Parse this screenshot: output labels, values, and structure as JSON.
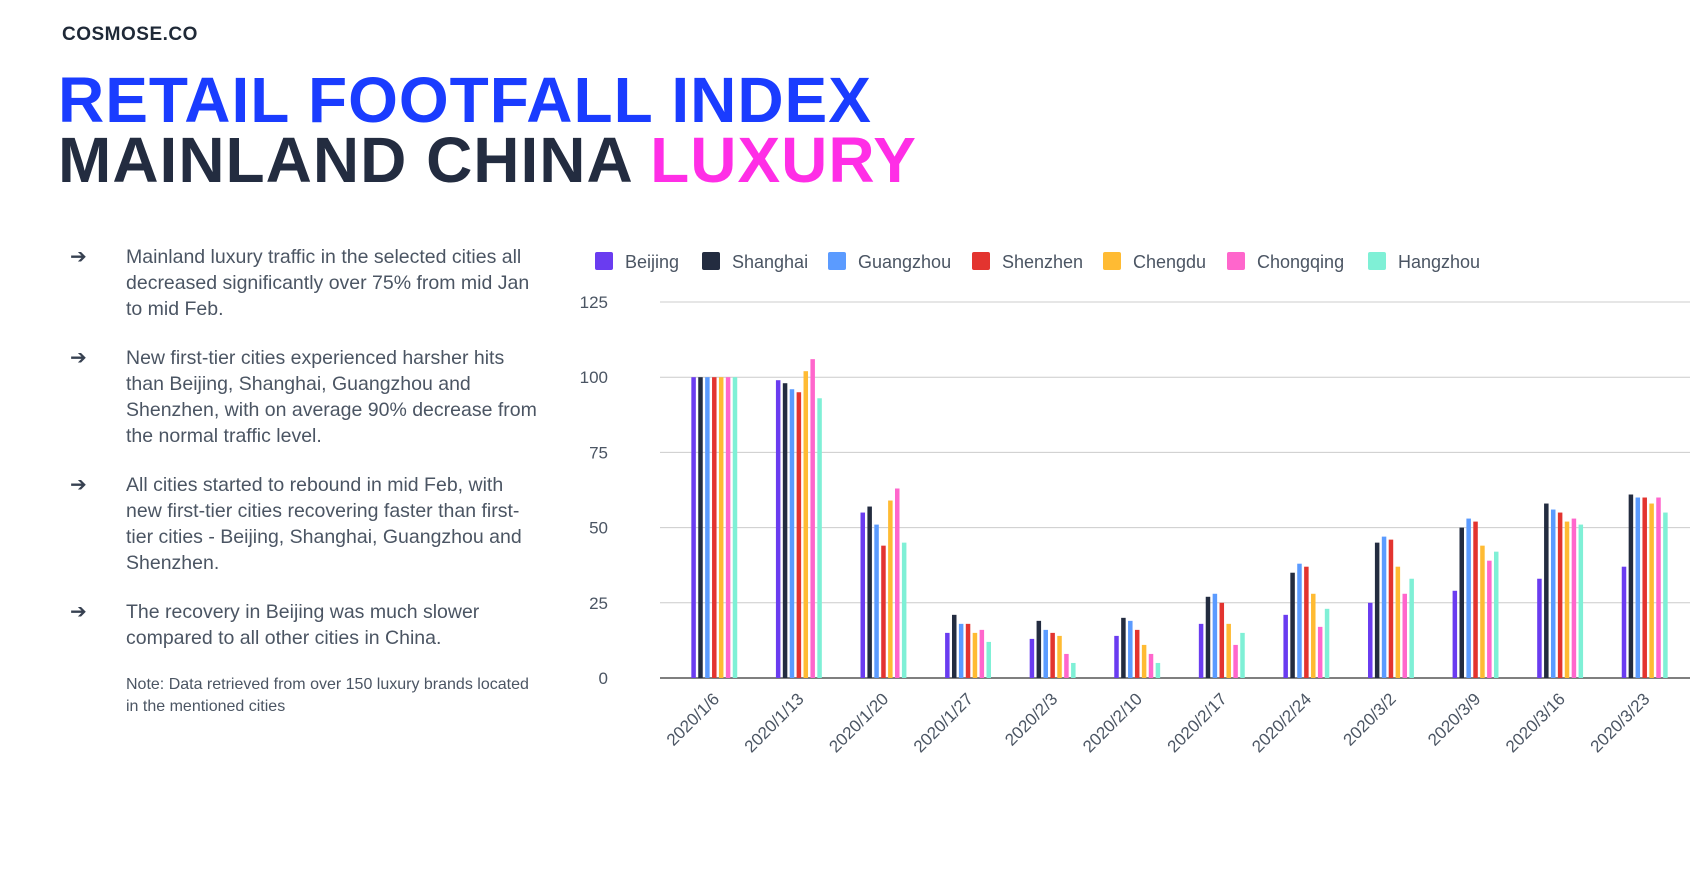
{
  "brand": "COSMOSE.CO",
  "title": {
    "line1": "RETAIL FOOTFALL INDEX",
    "line2_main": "MAINLAND CHINA ",
    "line2_accent": "LUXURY"
  },
  "bullets": [
    {
      "icon": "arrow-right-icon",
      "text": "Mainland luxury traffic in the selected cities all decreased significantly over 75% from mid Jan to mid Feb."
    },
    {
      "icon": "arrow-right-icon",
      "text": "New first-tier cities experienced harsher hits than Beijing, Shanghai, Guangzhou and Shenzhen, with on average 90% decrease from the normal traffic level."
    },
    {
      "icon": "arrow-right-icon",
      "text": "All cities started to rebound in mid Feb, with new first-tier cities recovering faster than first-tier cities - Beijing, Shanghai, Guangzhou and Shenzhen."
    },
    {
      "icon": "arrow-right-icon",
      "text": "The recovery in Beijing was much slower compared to all other cities in China."
    }
  ],
  "note": "Note: Data retrieved from over 150 luxury brands located in the mentioned cities",
  "colors": {
    "title_blue": "#1a3cff",
    "title_dark": "#232c40",
    "title_accent": "#ff2ee6"
  },
  "chart_data": {
    "type": "bar",
    "title": "",
    "xlabel": "",
    "ylabel": "",
    "ylim": [
      0,
      125
    ],
    "yticks": [
      0,
      25,
      50,
      75,
      100,
      125
    ],
    "grid": true,
    "legend_position": "top",
    "categories": [
      "2020/1/6",
      "2020/1/13",
      "2020/1/20",
      "2020/1/27",
      "2020/2/3",
      "2020/2/10",
      "2020/2/17",
      "2020/2/24",
      "2020/3/2",
      "2020/3/9",
      "2020/3/16",
      "2020/3/23"
    ],
    "series": [
      {
        "name": "Beijing",
        "color": "#6a3cf0",
        "values": [
          100,
          99,
          55,
          15,
          13,
          14,
          18,
          21,
          25,
          29,
          33,
          37
        ]
      },
      {
        "name": "Shanghai",
        "color": "#232c40",
        "values": [
          100,
          98,
          57,
          21,
          19,
          20,
          27,
          35,
          45,
          50,
          58,
          61
        ]
      },
      {
        "name": "Guangzhou",
        "color": "#5b9bff",
        "values": [
          100,
          96,
          51,
          18,
          16,
          19,
          28,
          38,
          47,
          53,
          56,
          60
        ]
      },
      {
        "name": "Shenzhen",
        "color": "#e3342f",
        "values": [
          100,
          95,
          44,
          18,
          15,
          16,
          25,
          37,
          46,
          52,
          55,
          60
        ]
      },
      {
        "name": "Chengdu",
        "color": "#ffbb33",
        "values": [
          100,
          102,
          59,
          15,
          14,
          11,
          18,
          28,
          37,
          44,
          52,
          58
        ]
      },
      {
        "name": "Chongqing",
        "color": "#ff66cc",
        "values": [
          100,
          106,
          63,
          16,
          8,
          8,
          11,
          17,
          28,
          39,
          53,
          60
        ]
      },
      {
        "name": "Hangzhou",
        "color": "#7ff0d6",
        "values": [
          100,
          93,
          45,
          12,
          5,
          5,
          15,
          23,
          33,
          42,
          51,
          55
        ]
      }
    ]
  }
}
